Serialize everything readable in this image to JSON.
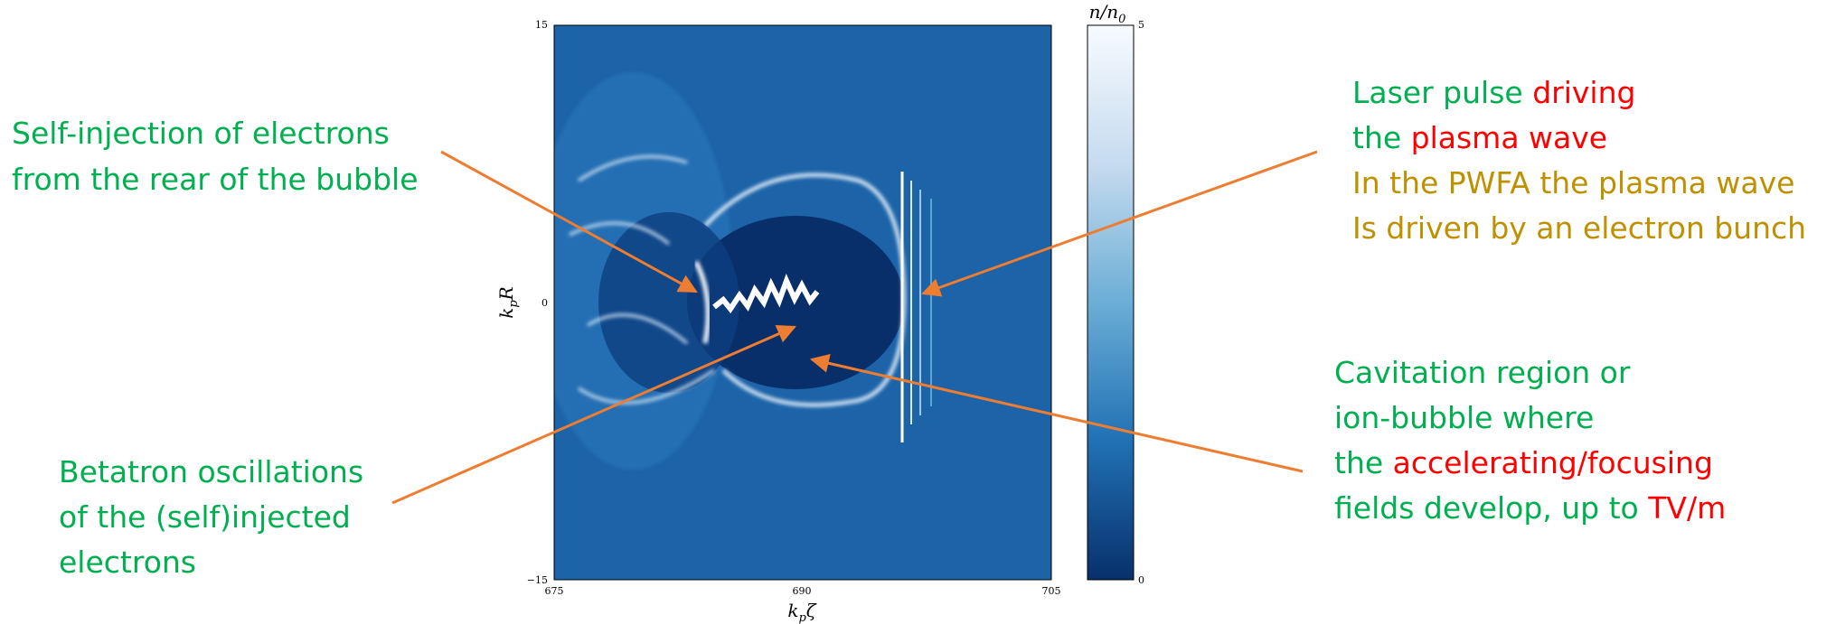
{
  "plot": {
    "y_axis_label": {
      "base": "k",
      "sub": "p",
      "rest": "R"
    },
    "x_axis_label": {
      "base": "k",
      "sub": "p",
      "rest": "ζ"
    },
    "colorbar_label": "n/n",
    "colorbar_label_sub": "0",
    "y_ticks": [
      "15",
      "0",
      "−15"
    ],
    "x_ticks": [
      "675",
      "690",
      "705"
    ],
    "colorbar_ticks": [
      "5",
      "0"
    ]
  },
  "annotations": [
    {
      "lines": [
        [
          {
            "text": "Self-injection of electrons",
            "color": "#00b050"
          }
        ],
        [
          {
            "text": "from the rear of the bubble",
            "color": "#00b050"
          }
        ]
      ]
    },
    {
      "lines": [
        [
          {
            "text": "Betatron oscillations",
            "color": "#00b050"
          }
        ],
        [
          {
            "text": "of the (self)injected",
            "color": "#00b050"
          }
        ],
        [
          {
            "text": "electrons",
            "color": "#00b050"
          }
        ]
      ]
    },
    {
      "lines": [
        [
          {
            "text": "Laser pulse ",
            "color": "#00b050"
          },
          {
            "text": "driving",
            "color": "#ff0000"
          }
        ],
        [
          {
            "text": "the ",
            "color": "#00b050"
          },
          {
            "text": "plasma wave",
            "color": "#ff0000"
          }
        ],
        [
          {
            "text": "In the PWFA the plasma wave",
            "color": "#bf9000"
          }
        ],
        [
          {
            "text": "Is driven by an electron bunch",
            "color": "#bf9000"
          }
        ]
      ]
    },
    {
      "lines": [
        [
          {
            "text": "Cavitation region or",
            "color": "#00b050"
          }
        ],
        [
          {
            "text": "ion-bubble where",
            "color": "#00b050"
          }
        ],
        [
          {
            "text": "the ",
            "color": "#00b050"
          },
          {
            "text": "accelerating/focusing",
            "color": "#ff0000"
          }
        ],
        [
          {
            "text": "fields develop, up to ",
            "color": "#00b050"
          },
          {
            "text": "TV/m",
            "color": "#ff0000"
          }
        ]
      ]
    }
  ]
}
